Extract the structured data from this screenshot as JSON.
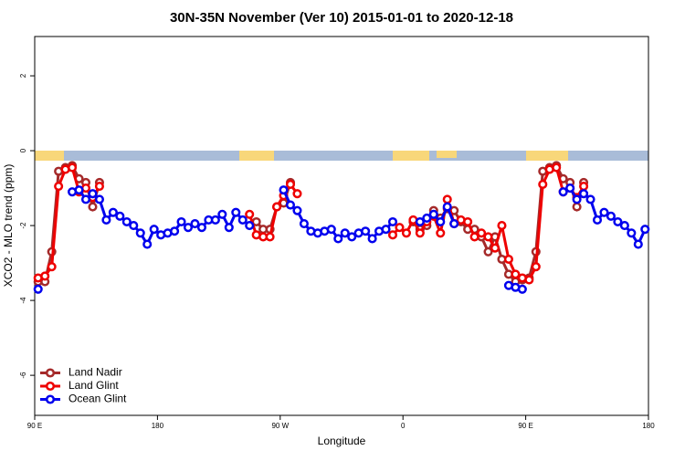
{
  "chart_data": {
    "type": "line",
    "title": "30N-35N November (Ver 10)   2015-01-01 to 2020-12-18",
    "x_label": "Longitude",
    "y_label": "XCO2 - MLO trend (ppm)",
    "xlim": [
      90,
      540
    ],
    "ylim": [
      -7.07,
      3.05
    ],
    "xticks": [
      {
        "value": 90,
        "label": "90 E"
      },
      180,
      {
        "value": 270,
        "label": "90 W"
      },
      {
        "value": 360,
        "label": "0"
      },
      {
        "value": 450,
        "label": "90 E"
      },
      {
        "value": 540,
        "label": "180"
      }
    ],
    "yticks": [
      2,
      0,
      -2,
      -4,
      -6
    ],
    "legend": "bottom-left",
    "series": [
      {
        "name": "Land Nadir",
        "color": "#a52a2a",
        "x": [
          92.5,
          97.5,
          102.5,
          107.5,
          112.5,
          117.5,
          122.5,
          127.5,
          132.5,
          137.5,
          142.5,
          252.5,
          257.5,
          262.5,
          267.5,
          272.5,
          277.5,
          282.5,
          367.5,
          372.5,
          377.5,
          382.5,
          387.5,
          392.5,
          397.5,
          402.5,
          407.5,
          412.5,
          417.5,
          422.5,
          427.5,
          432.5,
          437.5,
          442.5,
          447.5,
          452.5,
          457.5,
          462.5,
          467.5,
          472.5,
          477.5,
          482.5,
          487.5,
          492.5
        ],
        "values": [
          -3.5,
          -3.5,
          -2.7,
          -0.55,
          -0.45,
          -0.4,
          -0.75,
          -0.85,
          -1.5,
          -0.85,
          null,
          -1.9,
          -2.1,
          -2.1,
          -1.5,
          -1.4,
          -0.85,
          null,
          -1.9,
          -2.1,
          -2.0,
          -1.6,
          -1.8,
          -1.55,
          -1.6,
          -1.9,
          -2.1,
          -2.1,
          -2.3,
          -2.7,
          -2.3,
          -2.9,
          -3.3,
          -3.5,
          -3.45,
          -3.4,
          -2.7,
          -0.55,
          -0.45,
          -0.4,
          -0.75,
          -0.85,
          -1.5,
          -0.85
        ]
      },
      {
        "name": "Land Glint",
        "color": "#ee0000",
        "x": [
          92.5,
          97.5,
          102.5,
          107.5,
          112.5,
          117.5,
          122.5,
          127.5,
          132.5,
          137.5,
          142.5,
          247.5,
          252.5,
          257.5,
          262.5,
          267.5,
          272.5,
          277.5,
          282.5,
          287.5,
          352.5,
          357.5,
          362.5,
          367.5,
          372.5,
          377.5,
          382.5,
          387.5,
          392.5,
          397.5,
          402.5,
          407.5,
          412.5,
          417.5,
          422.5,
          427.5,
          432.5,
          437.5,
          442.5,
          447.5,
          452.5,
          457.5,
          462.5,
          467.5,
          472.5,
          477.5,
          482.5,
          487.5,
          492.5
        ],
        "values": [
          -3.4,
          -3.35,
          -3.1,
          -0.95,
          -0.5,
          -0.45,
          -1.1,
          -1.0,
          -1.25,
          -0.95,
          null,
          -1.7,
          -2.25,
          -2.3,
          -2.3,
          -1.5,
          -1.2,
          -0.9,
          -1.15,
          null,
          -2.25,
          -2.05,
          -2.2,
          -1.85,
          -2.2,
          -1.9,
          -1.75,
          -2.2,
          -1.3,
          -1.95,
          -1.85,
          -1.9,
          -2.3,
          -2.2,
          -2.3,
          -2.6,
          -2.0,
          -2.9,
          -3.3,
          -3.4,
          -3.45,
          -3.1,
          -0.9,
          -0.5,
          -0.45,
          -1.1,
          -1.0,
          -1.25,
          -0.95
        ]
      },
      {
        "name": "Ocean Glint",
        "color": "#0000ee",
        "x": [
          92.5,
          97.5,
          117.5,
          122.5,
          127.5,
          132.5,
          137.5,
          142.5,
          147.5,
          152.5,
          157.5,
          162.5,
          167.5,
          172.5,
          177.5,
          182.5,
          187.5,
          192.5,
          197.5,
          202.5,
          207.5,
          212.5,
          217.5,
          222.5,
          227.5,
          232.5,
          237.5,
          242.5,
          247.5,
          252.5,
          272.5,
          277.5,
          282.5,
          287.5,
          292.5,
          297.5,
          302.5,
          307.5,
          312.5,
          317.5,
          322.5,
          327.5,
          332.5,
          337.5,
          342.5,
          347.5,
          352.5,
          357.5,
          372.5,
          377.5,
          382.5,
          387.5,
          392.5,
          397.5,
          402.5,
          437.5,
          442.5,
          447.5,
          452.5,
          477.5,
          482.5,
          487.5,
          492.5,
          497.5,
          502.5,
          507.5,
          512.5,
          517.5,
          522.5,
          527.5,
          532.5,
          537.5
        ],
        "values": [
          -3.7,
          null,
          -1.1,
          -1.05,
          -1.3,
          -1.15,
          -1.3,
          -1.85,
          -1.65,
          -1.75,
          -1.9,
          -2.0,
          -2.2,
          -2.5,
          -2.1,
          -2.25,
          -2.2,
          -2.15,
          -1.9,
          -2.05,
          -1.95,
          -2.05,
          -1.85,
          -1.85,
          -1.7,
          -2.05,
          -1.65,
          -1.85,
          -2.0,
          null,
          -1.05,
          -1.45,
          -1.6,
          -1.95,
          -2.15,
          -2.2,
          -2.15,
          -2.1,
          -2.35,
          -2.2,
          -2.3,
          -2.2,
          -2.15,
          -2.35,
          -2.15,
          -2.1,
          -1.9,
          null,
          -1.9,
          -1.8,
          -1.7,
          -1.9,
          -1.5,
          -1.95,
          null,
          -3.6,
          -3.65,
          -3.7,
          null,
          -1.1,
          -1.0,
          -1.3,
          -1.15,
          -1.3,
          -1.85,
          -1.65,
          -1.75,
          -1.9,
          -2.0,
          -2.2,
          -2.5,
          -2.1
        ]
      }
    ]
  }
}
